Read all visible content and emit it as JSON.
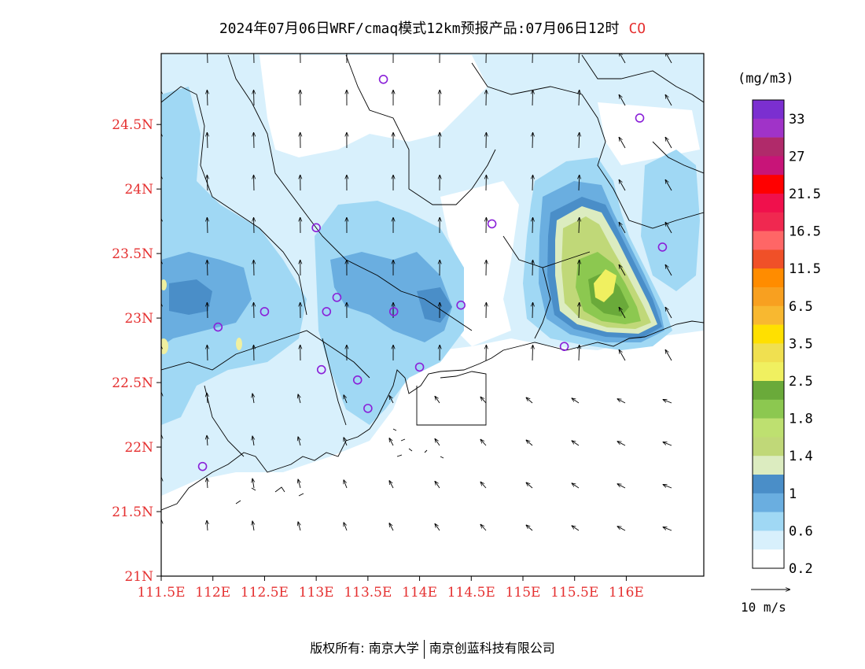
{
  "title": {
    "main": "2024年07月06日WRF/cmaq模式12km预报产品:07月06日12时",
    "species": "CO"
  },
  "axes": {
    "lat_labels": [
      "24.5N",
      "24N",
      "23.5N",
      "23N",
      "22.5N",
      "22N",
      "21.5N",
      "21N"
    ],
    "lon_labels": [
      "111.5E",
      "112E",
      "112.5E",
      "113E",
      "113.5E",
      "114E",
      "114.5E",
      "115E",
      "115.5E",
      "116E"
    ],
    "lat_values": [
      24.5,
      24,
      23.5,
      23,
      22.5,
      22,
      21.5,
      21
    ],
    "lon_values": [
      111.5,
      112,
      112.5,
      113,
      113.5,
      114,
      114.5,
      115,
      115.5,
      116
    ],
    "lat_range": [
      21,
      25.05
    ],
    "lon_range": [
      111.5,
      116.75
    ],
    "tick_color": "#e53030"
  },
  "colorbar": {
    "unit": "(mg/m3)",
    "labels": [
      "33",
      "27",
      "21.5",
      "16.5",
      "11.5",
      "6.5",
      "3.5",
      "2.5",
      "1.8",
      "1.4",
      "1",
      "0.6",
      "0.2"
    ],
    "colors": [
      "#7b2fd0",
      "#a033c8",
      "#b02a6a",
      "#c81478",
      "#ff0000",
      "#f0104c",
      "#f02850",
      "#ff6666",
      "#f05028",
      "#ff8c00",
      "#f8a020",
      "#f8b830",
      "#ffe000",
      "#f0e050",
      "#f0f060",
      "#6aaa3a",
      "#8cc850",
      "#bee070",
      "#c0d878",
      "#dcecc0",
      "#4a8ec8",
      "#6aaee0",
      "#a0d8f4",
      "#d8f0fc",
      "#ffffff"
    ]
  },
  "wind_reference": {
    "label": "10 m/s"
  },
  "stations": [
    {
      "lon": 113.65,
      "lat": 24.85
    },
    {
      "lon": 116.13,
      "lat": 24.55
    },
    {
      "lon": 113.0,
      "lat": 23.7
    },
    {
      "lon": 114.7,
      "lat": 23.73
    },
    {
      "lon": 116.35,
      "lat": 23.55
    },
    {
      "lon": 113.2,
      "lat": 23.16
    },
    {
      "lon": 113.1,
      "lat": 23.05
    },
    {
      "lon": 112.5,
      "lat": 23.05
    },
    {
      "lon": 113.75,
      "lat": 23.05
    },
    {
      "lon": 114.4,
      "lat": 23.1
    },
    {
      "lon": 112.05,
      "lat": 22.93
    },
    {
      "lon": 115.4,
      "lat": 22.78
    },
    {
      "lon": 113.05,
      "lat": 22.6
    },
    {
      "lon": 113.4,
      "lat": 22.52
    },
    {
      "lon": 114.0,
      "lat": 22.62
    },
    {
      "lon": 113.5,
      "lat": 22.3
    },
    {
      "lon": 111.9,
      "lat": 21.85
    }
  ],
  "footer": {
    "left": "版权所有: 南京大学",
    "right": "南京创蓝科技有限公司"
  }
}
